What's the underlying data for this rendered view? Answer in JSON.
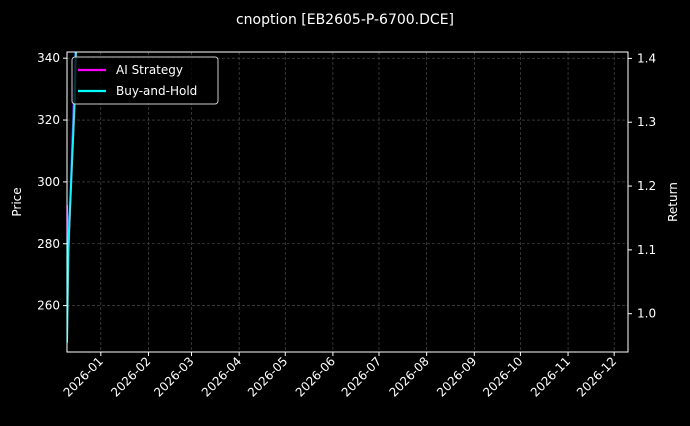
{
  "chart_data": {
    "type": "line",
    "title": "cnoption [EB2605-P-6700.DCE]",
    "ylabel_left": "Price",
    "ylabel_right": "Return",
    "x_ticks": [
      "2026-01",
      "2026-02",
      "2026-03",
      "2026-04",
      "2026-05",
      "2026-06",
      "2026-07",
      "2026-08",
      "2026-09",
      "2026-10",
      "2026-11",
      "2026-12"
    ],
    "xlim": [
      "2025-12-10",
      "2026-12-10"
    ],
    "ylim_left": [
      245,
      342
    ],
    "ylim_right": [
      0.94,
      1.41
    ],
    "y_ticks_left": [
      260,
      280,
      300,
      320,
      340
    ],
    "y_ticks_right": [
      "1.0",
      "1.1",
      "1.2",
      "1.3",
      "1.4"
    ],
    "grid": true,
    "legend_position": "top-left",
    "series": [
      {
        "name": "AI Strategy",
        "axis": "right",
        "color": "#ff00ff",
        "x": [
          "2025-12-10",
          "2025-12-11",
          "2025-12-15",
          "2025-12-16"
        ],
        "values": [
          1.17,
          1.1,
          1.37,
          1.45
        ]
      },
      {
        "name": "Buy-and-Hold",
        "axis": "left",
        "color": "#00ffff",
        "x": [
          "2025-12-10",
          "2025-12-11",
          "2025-12-15",
          "2025-12-16"
        ],
        "values": [
          248,
          280,
          326,
          345
        ]
      }
    ]
  }
}
